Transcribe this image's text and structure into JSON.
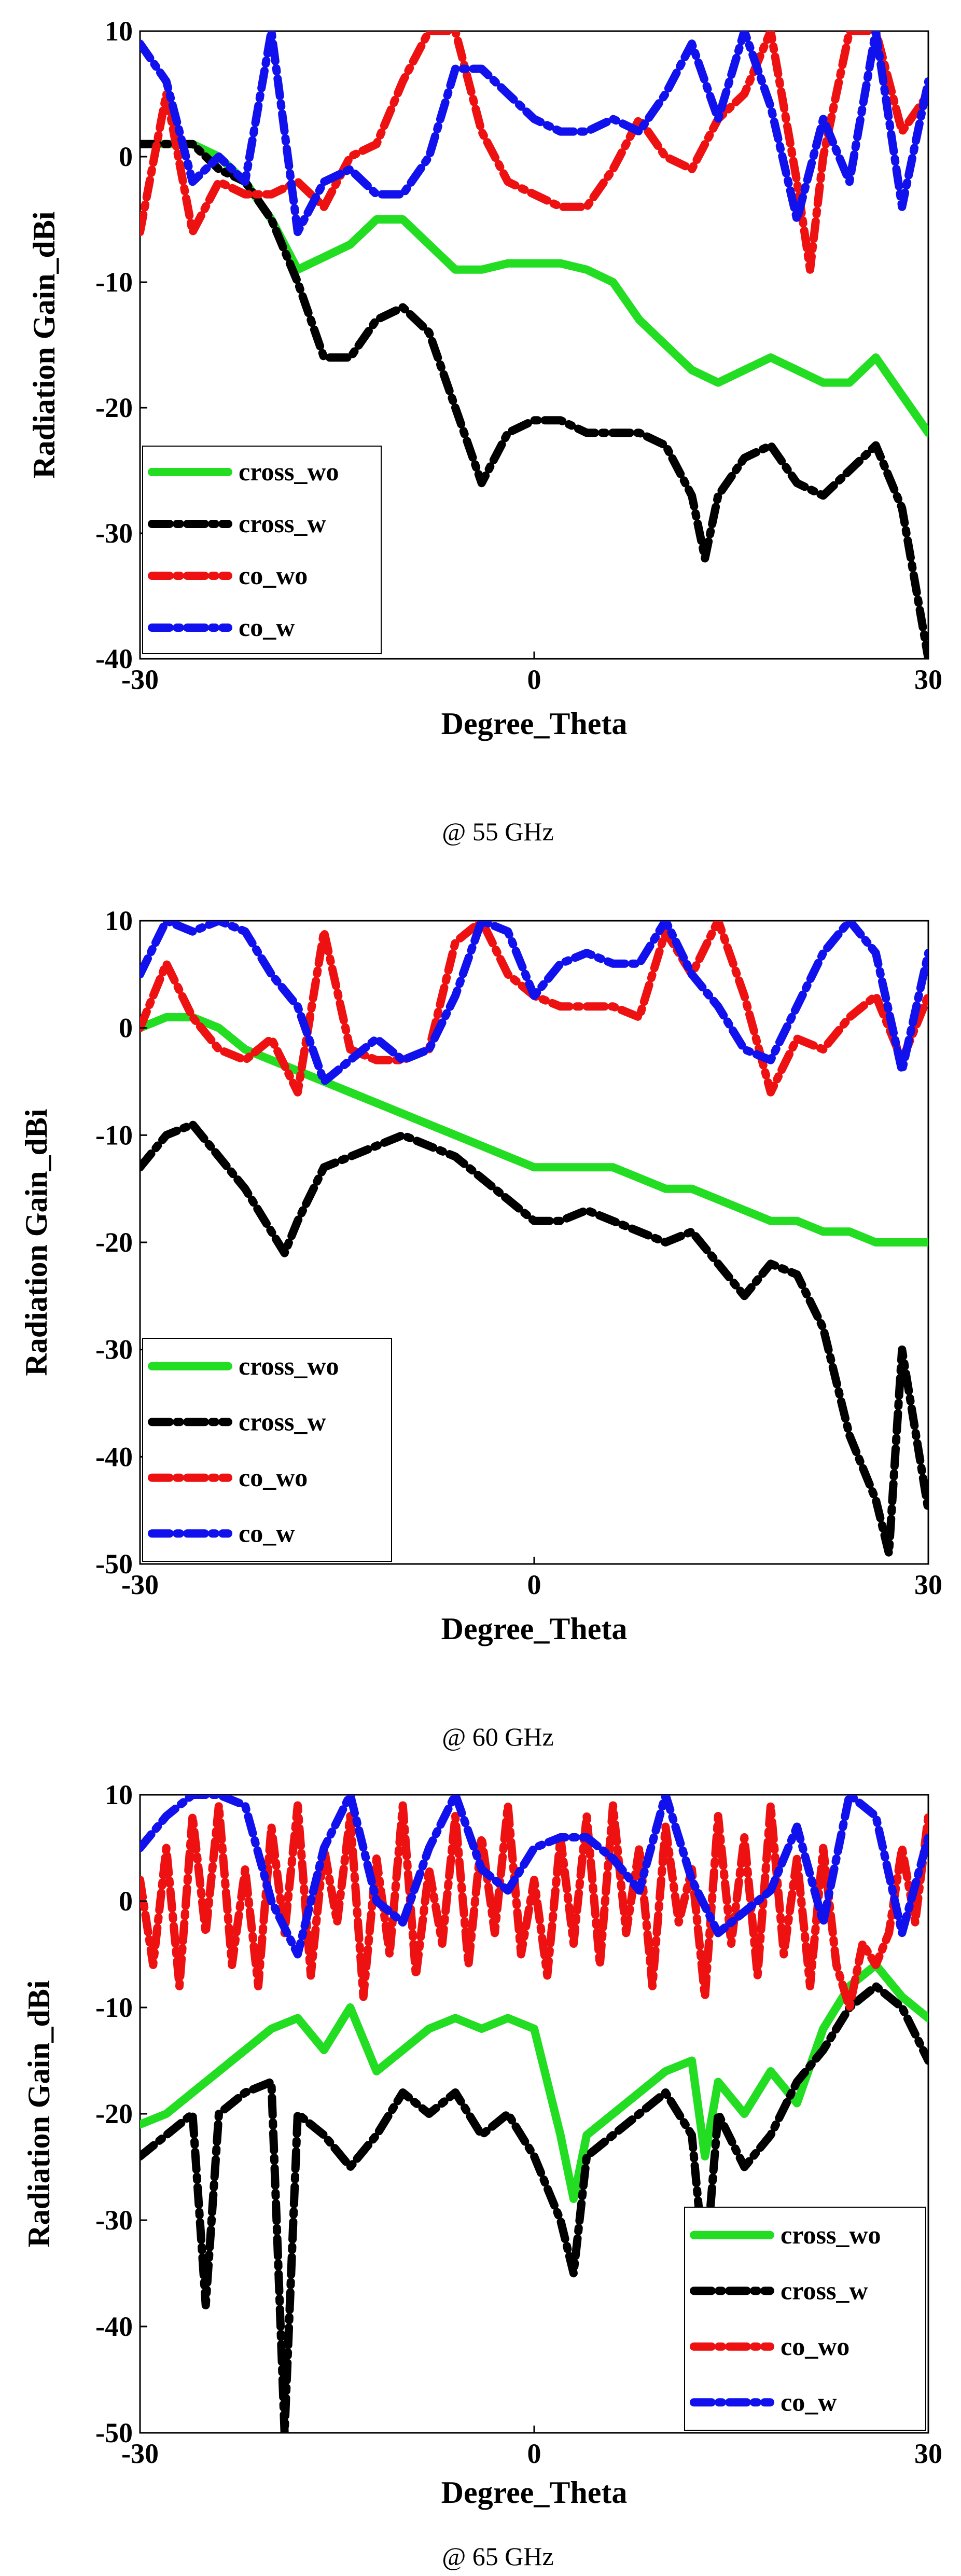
{
  "chart_data": [
    {
      "type": "line",
      "caption": "@ 55 GHz",
      "xlabel": "Degree_Theta",
      "ylabel": "Radiation Gain_dBi",
      "xlim": [
        -30,
        30
      ],
      "ylim": [
        -40,
        10
      ],
      "xticks": [
        "-30",
        "0",
        "30"
      ],
      "yticks": [
        "10",
        "0",
        "-10",
        "-20",
        "-30",
        "-40"
      ],
      "legend_position": "bottom-left",
      "grid": false,
      "series": [
        {
          "name": "cross_wo",
          "color": "#22dd22",
          "dash": "solid",
          "x": [
            -30,
            -28,
            -26,
            -24,
            -22,
            -20,
            -18,
            -16,
            -14,
            -12,
            -10,
            -8,
            -6,
            -4,
            -2,
            0,
            2,
            4,
            6,
            8,
            10,
            12,
            14,
            16,
            18,
            20,
            22,
            24,
            26,
            28,
            30
          ],
          "y": [
            1,
            1,
            1,
            0,
            -2,
            -5,
            -9,
            -8,
            -7,
            -5,
            -5,
            -7,
            -9,
            -9,
            -8.5,
            -8.5,
            -8.5,
            -9,
            -10,
            -13,
            -15,
            -17,
            -18,
            -17,
            -16,
            -17,
            -18,
            -18,
            -16,
            -19,
            -22
          ]
        },
        {
          "name": "cross_w",
          "color": "#000000",
          "dash": "dashdot",
          "x": [
            -30,
            -28,
            -26,
            -24,
            -22,
            -20,
            -18,
            -16,
            -14,
            -12,
            -10,
            -8,
            -6,
            -4,
            -2,
            0,
            2,
            4,
            6,
            8,
            10,
            12,
            13,
            14,
            16,
            18,
            20,
            22,
            24,
            26,
            28,
            30
          ],
          "y": [
            1,
            1,
            1,
            -1,
            -2,
            -5,
            -10,
            -16,
            -16,
            -13,
            -12,
            -14,
            -20,
            -26,
            -22,
            -21,
            -21,
            -22,
            -22,
            -22,
            -23,
            -27,
            -32,
            -27,
            -24,
            -23,
            -26,
            -27,
            -25,
            -23,
            -28,
            -40
          ]
        },
        {
          "name": "co_wo",
          "color": "#ee1111",
          "dash": "dashdot",
          "x": [
            -30,
            -28,
            -26,
            -24,
            -22,
            -20,
            -18,
            -16,
            -14,
            -12,
            -10,
            -8,
            -6,
            -4,
            -2,
            0,
            2,
            4,
            6,
            8,
            10,
            12,
            14,
            16,
            18,
            20,
            21,
            22,
            24,
            26,
            28,
            30
          ],
          "y": [
            -6,
            5,
            -6,
            -2,
            -3,
            -3,
            -2,
            -4,
            0,
            1,
            6,
            10,
            10,
            2,
            -2,
            -3,
            -4,
            -4,
            -1,
            3,
            0,
            -1,
            3,
            5,
            10,
            -2,
            -9,
            0,
            10,
            10,
            2,
            5
          ]
        },
        {
          "name": "co_w",
          "color": "#1111ee",
          "dash": "dashdot",
          "x": [
            -30,
            -28,
            -26,
            -24,
            -22,
            -20,
            -18,
            -16,
            -14,
            -12,
            -10,
            -8,
            -6,
            -4,
            -2,
            0,
            2,
            4,
            6,
            8,
            10,
            12,
            14,
            16,
            18,
            20,
            22,
            24,
            26,
            28,
            30
          ],
          "y": [
            9,
            6,
            -2,
            0,
            -2,
            10,
            -6,
            -2,
            -1,
            -3,
            -3,
            0,
            7,
            7,
            5,
            3,
            2,
            2,
            3,
            2,
            5,
            9,
            3,
            10,
            4,
            -5,
            3,
            -2,
            10,
            -4,
            6
          ]
        }
      ]
    },
    {
      "type": "line",
      "caption": "@ 60 GHz",
      "xlabel": "Degree_Theta",
      "ylabel": "Radiation Gain_dBi",
      "xlim": [
        -30,
        30
      ],
      "ylim": [
        -50,
        10
      ],
      "xticks": [
        "-30",
        "0",
        "30"
      ],
      "yticks": [
        "10",
        "0",
        "-10",
        "-20",
        "-30",
        "-40",
        "-50"
      ],
      "legend_position": "bottom-left",
      "grid": false,
      "series": [
        {
          "name": "cross_wo",
          "color": "#22dd22",
          "dash": "solid",
          "x": [
            -30,
            -28,
            -26,
            -24,
            -22,
            -20,
            -18,
            -16,
            -14,
            -12,
            -10,
            -8,
            -6,
            -4,
            -2,
            0,
            2,
            4,
            6,
            8,
            10,
            12,
            14,
            16,
            18,
            20,
            22,
            24,
            26,
            28,
            30
          ],
          "y": [
            0,
            1,
            1,
            0,
            -2,
            -3,
            -4,
            -5,
            -6,
            -7,
            -8,
            -9,
            -10,
            -11,
            -12,
            -13,
            -13,
            -13,
            -13,
            -14,
            -15,
            -15,
            -16,
            -17,
            -18,
            -18,
            -19,
            -19,
            -20,
            -20,
            -20
          ]
        },
        {
          "name": "cross_w",
          "color": "#000000",
          "dash": "dashdot",
          "x": [
            -30,
            -28,
            -26,
            -24,
            -22,
            -20,
            -19,
            -18,
            -16,
            -14,
            -12,
            -10,
            -8,
            -6,
            -4,
            -2,
            0,
            2,
            4,
            6,
            8,
            10,
            12,
            14,
            16,
            18,
            20,
            22,
            24,
            26,
            27,
            28,
            30
          ],
          "y": [
            -13,
            -10,
            -9,
            -12,
            -15,
            -19,
            -21,
            -18,
            -13,
            -12,
            -11,
            -10,
            -11,
            -12,
            -14,
            -16,
            -18,
            -18,
            -17,
            -18,
            -19,
            -20,
            -19,
            -22,
            -25,
            -22,
            -23,
            -28,
            -38,
            -44,
            -49,
            -30,
            -45
          ]
        },
        {
          "name": "co_wo",
          "color": "#ee1111",
          "dash": "dashdot",
          "x": [
            -30,
            -28,
            -26,
            -24,
            -22,
            -20,
            -18,
            -16,
            -14,
            -12,
            -10,
            -8,
            -6,
            -4,
            -2,
            0,
            2,
            4,
            6,
            8,
            10,
            12,
            14,
            16,
            18,
            20,
            22,
            24,
            26,
            28,
            30
          ],
          "y": [
            0,
            6,
            1,
            -2,
            -3,
            -1,
            -6,
            9,
            -2,
            -3,
            -3,
            -2,
            8,
            10,
            5,
            3,
            2,
            2,
            2,
            1,
            9,
            5,
            10,
            3,
            -6,
            -1,
            -2,
            1,
            3,
            -3,
            3
          ]
        },
        {
          "name": "co_w",
          "color": "#1111ee",
          "dash": "dashdot",
          "x": [
            -30,
            -28,
            -26,
            -24,
            -22,
            -20,
            -18,
            -16,
            -14,
            -12,
            -10,
            -8,
            -6,
            -4,
            -2,
            0,
            2,
            4,
            6,
            8,
            10,
            12,
            14,
            16,
            18,
            20,
            22,
            24,
            26,
            28,
            30
          ],
          "y": [
            5,
            10,
            9,
            10,
            9,
            5,
            2,
            -5,
            -3,
            -1,
            -3,
            -2,
            3,
            10,
            9,
            3,
            6,
            7,
            6,
            6,
            10,
            5,
            2,
            -2,
            -3,
            2,
            7,
            10,
            7,
            -4,
            7
          ]
        }
      ]
    },
    {
      "type": "line",
      "caption": "@ 65 GHz",
      "xlabel": "Degree_Theta",
      "ylabel": "Radiation Gain_dBi",
      "xlim": [
        -30,
        30
      ],
      "ylim": [
        -50,
        10
      ],
      "xticks": [
        "-30",
        "0",
        "30"
      ],
      "yticks": [
        "10",
        "0",
        "-10",
        "-20",
        "-30",
        "-40",
        "-50"
      ],
      "legend_position": "bottom-right",
      "grid": false,
      "series": [
        {
          "name": "cross_wo",
          "color": "#22dd22",
          "dash": "solid",
          "x": [
            -30,
            -28,
            -26,
            -24,
            -22,
            -20,
            -18,
            -16,
            -14,
            -12,
            -10,
            -8,
            -6,
            -4,
            -2,
            0,
            2,
            3,
            4,
            6,
            8,
            10,
            12,
            13,
            14,
            16,
            18,
            20,
            22,
            24,
            26,
            28,
            30
          ],
          "y": [
            -21,
            -20,
            -18,
            -16,
            -14,
            -12,
            -11,
            -14,
            -10,
            -16,
            -14,
            -12,
            -11,
            -12,
            -11,
            -12,
            -22,
            -28,
            -22,
            -20,
            -18,
            -16,
            -15,
            -24,
            -17,
            -20,
            -16,
            -19,
            -12,
            -8,
            -6,
            -9,
            -11
          ]
        },
        {
          "name": "cross_w",
          "color": "#000000",
          "dash": "dashdot",
          "x": [
            -30,
            -28,
            -26,
            -25,
            -24,
            -22,
            -20,
            -19,
            -18,
            -16,
            -14,
            -12,
            -10,
            -8,
            -6,
            -4,
            -2,
            0,
            2,
            3,
            4,
            6,
            8,
            10,
            12,
            13,
            14,
            16,
            18,
            20,
            22,
            24,
            26,
            28,
            30
          ],
          "y": [
            -24,
            -22,
            -20,
            -38,
            -20,
            -18,
            -17,
            -50,
            -20,
            -22,
            -25,
            -22,
            -18,
            -20,
            -18,
            -22,
            -20,
            -24,
            -30,
            -35,
            -24,
            -22,
            -20,
            -18,
            -22,
            -35,
            -20,
            -25,
            -22,
            -17,
            -14,
            -10,
            -8,
            -10,
            -15
          ]
        },
        {
          "name": "co_wo",
          "color": "#ee1111",
          "dash": "dashdot",
          "x": [
            -30,
            -29,
            -28,
            -27,
            -26,
            -25,
            -24,
            -23,
            -22,
            -21,
            -20,
            -19,
            -18,
            -17,
            -16,
            -15,
            -14,
            -13,
            -12,
            -11,
            -10,
            -9,
            -8,
            -7,
            -6,
            -5,
            -4,
            -3,
            -2,
            -1,
            0,
            1,
            2,
            3,
            4,
            5,
            6,
            7,
            8,
            9,
            10,
            11,
            12,
            13,
            14,
            15,
            16,
            17,
            18,
            19,
            20,
            21,
            22,
            23,
            24,
            25,
            26,
            27,
            28,
            29,
            30
          ],
          "y": [
            2,
            -6,
            5,
            -8,
            8,
            -3,
            9,
            -6,
            3,
            -8,
            7,
            -3,
            9,
            -7,
            5,
            -2,
            8,
            -9,
            4,
            -5,
            9,
            -7,
            3,
            -4,
            8,
            -6,
            6,
            -3,
            9,
            -5,
            2,
            -7,
            6,
            -4,
            8,
            -6,
            9,
            -3,
            5,
            -8,
            7,
            -2,
            3,
            -9,
            8,
            -4,
            6,
            -7,
            9,
            -5,
            4,
            -8,
            5,
            -6,
            -10,
            -4,
            -6,
            -3,
            5,
            -2,
            8
          ]
        },
        {
          "name": "co_w",
          "color": "#1111ee",
          "dash": "dashdot",
          "x": [
            -30,
            -28,
            -26,
            -24,
            -22,
            -20,
            -18,
            -16,
            -14,
            -12,
            -10,
            -8,
            -6,
            -4,
            -2,
            0,
            2,
            4,
            6,
            8,
            10,
            12,
            14,
            16,
            18,
            20,
            22,
            24,
            26,
            28,
            30
          ],
          "y": [
            5,
            8,
            10,
            10,
            9,
            0,
            -5,
            5,
            10,
            0,
            -2,
            5,
            10,
            3,
            1,
            5,
            6,
            6,
            4,
            1,
            10,
            2,
            -3,
            -1,
            1,
            7,
            -2,
            10,
            8,
            -3,
            6
          ]
        }
      ]
    }
  ]
}
